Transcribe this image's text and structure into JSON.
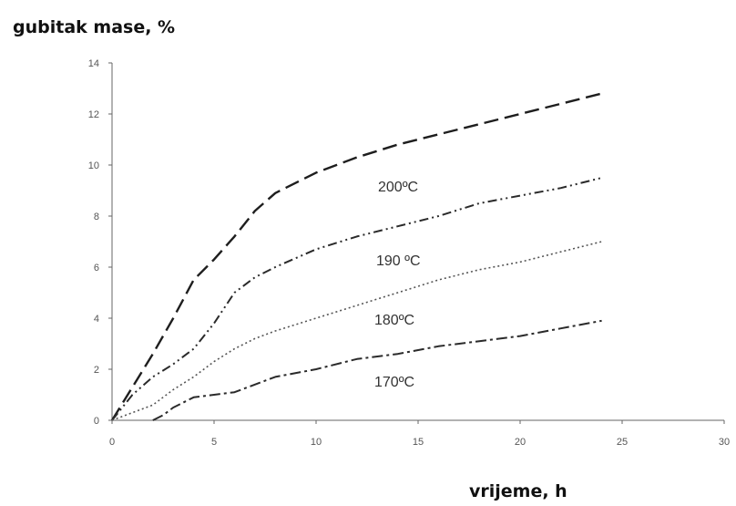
{
  "chart_data": {
    "type": "line",
    "ylabel": "gubitak mase, %",
    "xlabel": "vrijeme, h",
    "xlim": [
      0,
      30
    ],
    "ylim": [
      0,
      14
    ],
    "x_ticks": [
      0,
      5,
      10,
      15,
      20,
      25,
      30
    ],
    "y_ticks": [
      0,
      2,
      4,
      6,
      8,
      10,
      12,
      14
    ],
    "grid": false,
    "legend": "inline labels",
    "series": [
      {
        "name": "200ºC",
        "style": "long-dash",
        "x": [
          0,
          1,
          2,
          3,
          4,
          5,
          6,
          7,
          8,
          10,
          12,
          14,
          16,
          18,
          20,
          22,
          24
        ],
        "y": [
          0,
          1.3,
          2.6,
          4.0,
          5.5,
          6.3,
          7.2,
          8.2,
          8.9,
          9.7,
          10.3,
          10.8,
          11.2,
          11.6,
          12.0,
          12.4,
          12.8
        ]
      },
      {
        "name": "190 ºC",
        "style": "dash-dot-dot",
        "x": [
          0,
          1,
          2,
          3,
          4,
          5,
          6,
          7,
          8,
          10,
          12,
          14,
          16,
          18,
          20,
          22,
          24
        ],
        "y": [
          0,
          1.0,
          1.7,
          2.2,
          2.8,
          3.8,
          5.0,
          5.6,
          6.0,
          6.7,
          7.2,
          7.6,
          8.0,
          8.5,
          8.8,
          9.1,
          9.5
        ]
      },
      {
        "name": "180ºC",
        "style": "dotted",
        "x": [
          0,
          1,
          2,
          3,
          4,
          5,
          6,
          7,
          8,
          10,
          12,
          14,
          16,
          18,
          20,
          22,
          24
        ],
        "y": [
          0,
          0.3,
          0.6,
          1.2,
          1.7,
          2.3,
          2.8,
          3.2,
          3.5,
          4.0,
          4.5,
          5.0,
          5.5,
          5.9,
          6.2,
          6.6,
          7.0
        ]
      },
      {
        "name": "170ºC",
        "style": "dash-dot",
        "x": [
          2,
          2.5,
          3,
          4,
          5,
          6,
          7,
          8,
          10,
          12,
          14,
          16,
          18,
          20,
          22,
          24
        ],
        "y": [
          0,
          0.2,
          0.5,
          0.9,
          1.0,
          1.1,
          1.4,
          1.7,
          2.0,
          2.4,
          2.6,
          2.9,
          3.1,
          3.3,
          3.6,
          3.9
        ]
      }
    ]
  }
}
